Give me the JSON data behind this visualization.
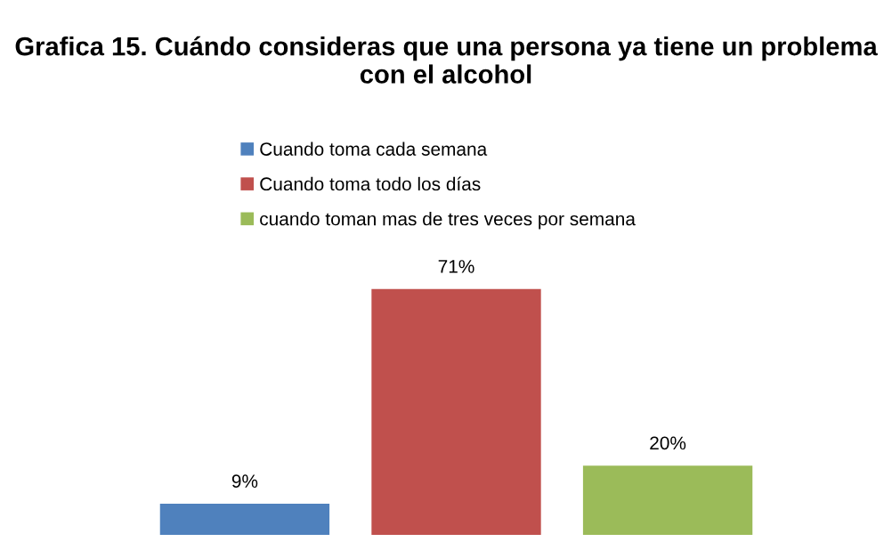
{
  "chart_data": {
    "type": "bar",
    "title": "Grafica 15. Cuándo consideras que una persona ya tiene un problema con el alcohol",
    "categories": [
      null
    ],
    "series": [
      {
        "name": "Cuando toma cada semana",
        "color": "#4f81bd",
        "values": [
          9
        ],
        "value_labels": [
          "9%"
        ]
      },
      {
        "name": "Cuando toma todo los días",
        "color": "#c0504d",
        "values": [
          71
        ],
        "value_labels": [
          "71%"
        ]
      },
      {
        "name": "cuando toman mas de tres veces por semana",
        "color": "#9bbb59",
        "values": [
          20
        ],
        "value_labels": [
          "20%"
        ]
      }
    ],
    "legend": "top",
    "grid": false,
    "tick_labels": false
  }
}
